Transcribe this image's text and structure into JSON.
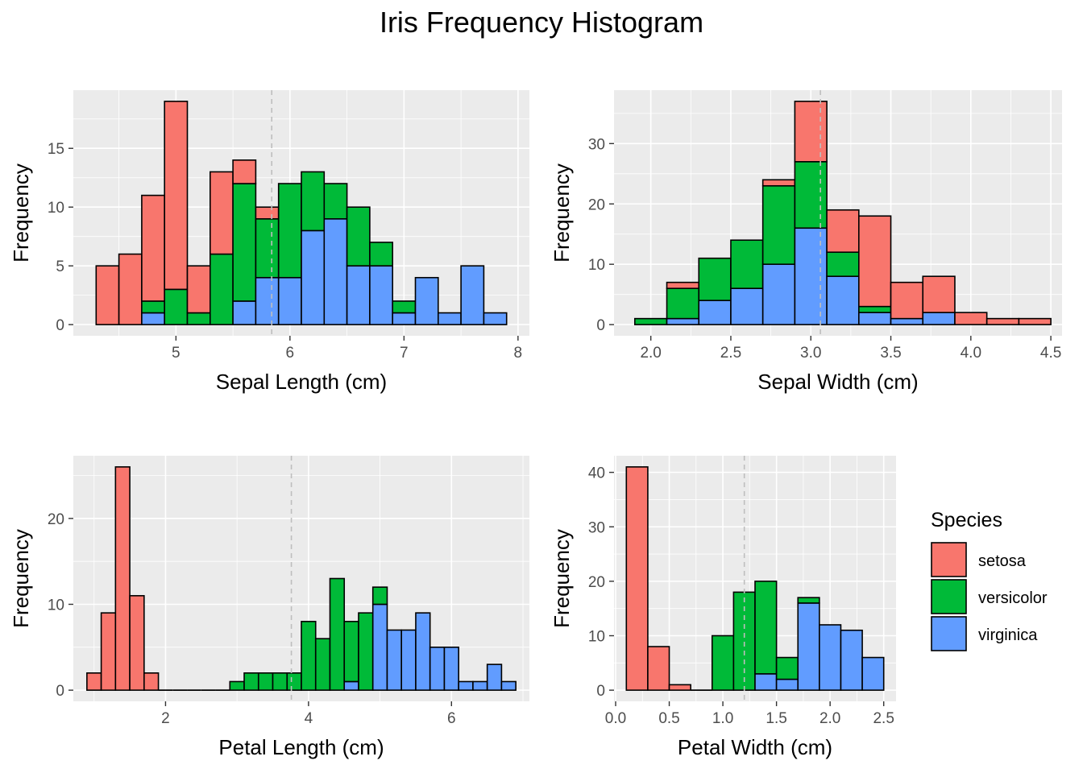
{
  "chart_data": {
    "title": "Iris Frequency Histogram",
    "type": "bar",
    "stacked": true,
    "legend": {
      "title": "Species",
      "position": "right",
      "entries": [
        {
          "label": "setosa",
          "color": "#F8766D"
        },
        {
          "label": "versicolor",
          "color": "#00BA38"
        },
        {
          "label": "virginica",
          "color": "#619CFF"
        }
      ]
    },
    "panels": [
      {
        "name": "sepal-length",
        "xlabel": "Sepal Length (cm)",
        "ylabel": "Frequency",
        "xlim": [
          4.1,
          8.1
        ],
        "ylim": [
          -0.95,
          19.95
        ],
        "xticks": [
          5,
          6,
          7,
          8
        ],
        "yticks": [
          0,
          5,
          10,
          15
        ],
        "mean_line": 5.84,
        "bin_width": 0.2,
        "bins": [
          {
            "x0": 4.3,
            "setosa": 5,
            "versicolor": 0,
            "virginica": 0
          },
          {
            "x0": 4.5,
            "setosa": 6,
            "versicolor": 0,
            "virginica": 0
          },
          {
            "x0": 4.7,
            "setosa": 9,
            "versicolor": 1,
            "virginica": 1
          },
          {
            "x0": 4.9,
            "setosa": 16,
            "versicolor": 3,
            "virginica": 0
          },
          {
            "x0": 5.1,
            "setosa": 4,
            "versicolor": 1,
            "virginica": 0
          },
          {
            "x0": 5.3,
            "setosa": 7,
            "versicolor": 6,
            "virginica": 0
          },
          {
            "x0": 5.5,
            "setosa": 2,
            "versicolor": 10,
            "virginica": 2
          },
          {
            "x0": 5.7,
            "setosa": 1,
            "versicolor": 5,
            "virginica": 4
          },
          {
            "x0": 5.9,
            "setosa": 0,
            "versicolor": 8,
            "virginica": 4
          },
          {
            "x0": 6.1,
            "setosa": 0,
            "versicolor": 5,
            "virginica": 8
          },
          {
            "x0": 6.3,
            "setosa": 0,
            "versicolor": 3,
            "virginica": 9
          },
          {
            "x0": 6.5,
            "setosa": 0,
            "versicolor": 5,
            "virginica": 5
          },
          {
            "x0": 6.7,
            "setosa": 0,
            "versicolor": 2,
            "virginica": 5
          },
          {
            "x0": 6.9,
            "setosa": 0,
            "versicolor": 1,
            "virginica": 1
          },
          {
            "x0": 7.1,
            "setosa": 0,
            "versicolor": 0,
            "virginica": 4
          },
          {
            "x0": 7.3,
            "setosa": 0,
            "versicolor": 0,
            "virginica": 1
          },
          {
            "x0": 7.5,
            "setosa": 0,
            "versicolor": 0,
            "virginica": 5
          },
          {
            "x0": 7.7,
            "setosa": 0,
            "versicolor": 0,
            "virginica": 1
          }
        ]
      },
      {
        "name": "sepal-width",
        "xlabel": "Sepal Width (cm)",
        "ylabel": "Frequency",
        "xlim": [
          1.77,
          4.57
        ],
        "ylim": [
          -1.85,
          38.85
        ],
        "xticks": [
          2.0,
          2.5,
          3.0,
          3.5,
          4.0,
          4.5
        ],
        "yticks": [
          0,
          10,
          20,
          30
        ],
        "mean_line": 3.06,
        "bin_width": 0.2,
        "bins": [
          {
            "x0": 1.9,
            "setosa": 0,
            "versicolor": 1,
            "virginica": 0
          },
          {
            "x0": 2.1,
            "setosa": 1,
            "versicolor": 5,
            "virginica": 1
          },
          {
            "x0": 2.3,
            "setosa": 0,
            "versicolor": 7,
            "virginica": 4
          },
          {
            "x0": 2.5,
            "setosa": 0,
            "versicolor": 8,
            "virginica": 6
          },
          {
            "x0": 2.7,
            "setosa": 1,
            "versicolor": 13,
            "virginica": 10
          },
          {
            "x0": 2.9,
            "setosa": 10,
            "versicolor": 11,
            "virginica": 16
          },
          {
            "x0": 3.1,
            "setosa": 7,
            "versicolor": 4,
            "virginica": 8
          },
          {
            "x0": 3.3,
            "setosa": 15,
            "versicolor": 1,
            "virginica": 2
          },
          {
            "x0": 3.5,
            "setosa": 6,
            "versicolor": 0,
            "virginica": 1
          },
          {
            "x0": 3.7,
            "setosa": 6,
            "versicolor": 0,
            "virginica": 2
          },
          {
            "x0": 3.9,
            "setosa": 2,
            "versicolor": 0,
            "virginica": 0
          },
          {
            "x0": 4.1,
            "setosa": 1,
            "versicolor": 0,
            "virginica": 0
          },
          {
            "x0": 4.3,
            "setosa": 1,
            "versicolor": 0,
            "virginica": 0
          }
        ]
      },
      {
        "name": "petal-length",
        "xlabel": "Petal Length (cm)",
        "ylabel": "Frequency",
        "xlim": [
          0.71,
          7.09
        ],
        "ylim": [
          -1.3,
          27.3
        ],
        "xticks": [
          2,
          4,
          6
        ],
        "yticks": [
          0,
          10,
          20
        ],
        "mean_line": 3.76,
        "bin_width": 0.2,
        "bins": [
          {
            "x0": 0.9,
            "setosa": 2,
            "versicolor": 0,
            "virginica": 0
          },
          {
            "x0": 1.1,
            "setosa": 9,
            "versicolor": 0,
            "virginica": 0
          },
          {
            "x0": 1.3,
            "setosa": 26,
            "versicolor": 0,
            "virginica": 0
          },
          {
            "x0": 1.5,
            "setosa": 11,
            "versicolor": 0,
            "virginica": 0
          },
          {
            "x0": 1.7,
            "setosa": 2,
            "versicolor": 0,
            "virginica": 0
          },
          {
            "x0": 1.9,
            "setosa": 0,
            "versicolor": 0,
            "virginica": 0
          },
          {
            "x0": 2.1,
            "setosa": 0,
            "versicolor": 0,
            "virginica": 0
          },
          {
            "x0": 2.3,
            "setosa": 0,
            "versicolor": 0,
            "virginica": 0
          },
          {
            "x0": 2.5,
            "setosa": 0,
            "versicolor": 0,
            "virginica": 0
          },
          {
            "x0": 2.7,
            "setosa": 0,
            "versicolor": 0,
            "virginica": 0
          },
          {
            "x0": 2.9,
            "setosa": 0,
            "versicolor": 1,
            "virginica": 0
          },
          {
            "x0": 3.1,
            "setosa": 0,
            "versicolor": 2,
            "virginica": 0
          },
          {
            "x0": 3.3,
            "setosa": 0,
            "versicolor": 2,
            "virginica": 0
          },
          {
            "x0": 3.5,
            "setosa": 0,
            "versicolor": 2,
            "virginica": 0
          },
          {
            "x0": 3.7,
            "setosa": 0,
            "versicolor": 2,
            "virginica": 0
          },
          {
            "x0": 3.9,
            "setosa": 0,
            "versicolor": 8,
            "virginica": 0
          },
          {
            "x0": 4.1,
            "setosa": 0,
            "versicolor": 6,
            "virginica": 0
          },
          {
            "x0": 4.3,
            "setosa": 0,
            "versicolor": 13,
            "virginica": 0
          },
          {
            "x0": 4.5,
            "setosa": 0,
            "versicolor": 7,
            "virginica": 1
          },
          {
            "x0": 4.7,
            "setosa": 0,
            "versicolor": 9,
            "virginica": 0
          },
          {
            "x0": 4.9,
            "setosa": 0,
            "versicolor": 2,
            "virginica": 10
          },
          {
            "x0": 5.1,
            "setosa": 0,
            "versicolor": 0,
            "virginica": 7
          },
          {
            "x0": 5.3,
            "setosa": 0,
            "versicolor": 0,
            "virginica": 7
          },
          {
            "x0": 5.5,
            "setosa": 0,
            "versicolor": 0,
            "virginica": 9
          },
          {
            "x0": 5.7,
            "setosa": 0,
            "versicolor": 0,
            "virginica": 5
          },
          {
            "x0": 5.9,
            "setosa": 0,
            "versicolor": 0,
            "virginica": 5
          },
          {
            "x0": 6.1,
            "setosa": 0,
            "versicolor": 0,
            "virginica": 1
          },
          {
            "x0": 6.3,
            "setosa": 0,
            "versicolor": 0,
            "virginica": 1
          },
          {
            "x0": 6.5,
            "setosa": 0,
            "versicolor": 0,
            "virginica": 3
          },
          {
            "x0": 6.7,
            "setosa": 0,
            "versicolor": 0,
            "virginica": 1
          }
        ]
      },
      {
        "name": "petal-width",
        "xlabel": "Petal Width (cm)",
        "ylabel": "Frequency",
        "xlim": [
          -0.015,
          2.615
        ],
        "ylim": [
          -2.05,
          43.05
        ],
        "xticks": [
          0.0,
          0.5,
          1.0,
          1.5,
          2.0,
          2.5
        ],
        "yticks": [
          0,
          10,
          20,
          30,
          40
        ],
        "mean_line": 1.2,
        "bin_width": 0.2,
        "bins": [
          {
            "x0": 0.1,
            "setosa": 41,
            "versicolor": 0,
            "virginica": 0
          },
          {
            "x0": 0.3,
            "setosa": 8,
            "versicolor": 0,
            "virginica": 0
          },
          {
            "x0": 0.5,
            "setosa": 1,
            "versicolor": 0,
            "virginica": 0
          },
          {
            "x0": 0.7,
            "setosa": 0,
            "versicolor": 0,
            "virginica": 0
          },
          {
            "x0": 0.9,
            "setosa": 0,
            "versicolor": 10,
            "virginica": 0
          },
          {
            "x0": 1.1,
            "setosa": 0,
            "versicolor": 18,
            "virginica": 0
          },
          {
            "x0": 1.3,
            "setosa": 0,
            "versicolor": 17,
            "virginica": 3
          },
          {
            "x0": 1.5,
            "setosa": 0,
            "versicolor": 4,
            "virginica": 2
          },
          {
            "x0": 1.7,
            "setosa": 0,
            "versicolor": 1,
            "virginica": 16
          },
          {
            "x0": 1.9,
            "setosa": 0,
            "versicolor": 0,
            "virginica": 12
          },
          {
            "x0": 2.1,
            "setosa": 0,
            "versicolor": 0,
            "virginica": 11
          },
          {
            "x0": 2.3,
            "setosa": 0,
            "versicolor": 0,
            "virginica": 6
          }
        ]
      }
    ]
  }
}
